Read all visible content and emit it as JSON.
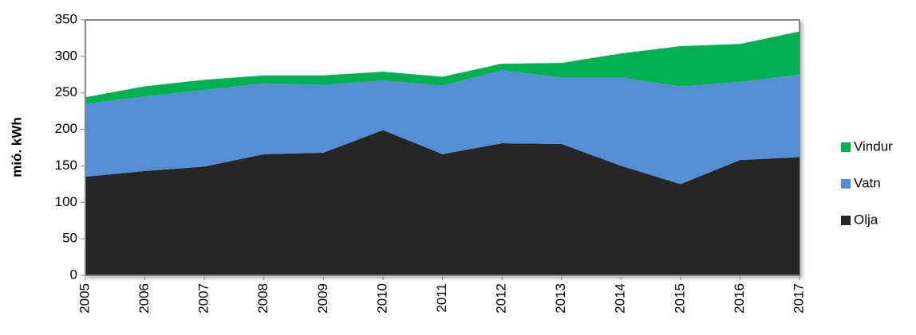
{
  "chart_data": {
    "type": "area",
    "stacked": true,
    "ylabel": "mió. kWh",
    "categories": [
      "2005",
      "2006",
      "2007",
      "2008",
      "2009",
      "2010",
      "2011",
      "2012",
      "2013",
      "2014",
      "2015",
      "2016",
      "2017"
    ],
    "series": [
      {
        "name": "Olja",
        "color": "#262626",
        "values": [
          135,
          143,
          149,
          166,
          168,
          199,
          166,
          181,
          180,
          150,
          125,
          158,
          162
        ]
      },
      {
        "name": "Vatn",
        "color": "#558ed5",
        "values": [
          100,
          102,
          105,
          97,
          93,
          68,
          94,
          100,
          91,
          121,
          134,
          107,
          113
        ]
      },
      {
        "name": "Vindur",
        "color": "#00b050",
        "values": [
          9,
          14,
          14,
          11,
          13,
          12,
          12,
          9,
          20,
          33,
          55,
          52,
          59
        ]
      }
    ],
    "ylim": [
      0,
      350
    ],
    "yticks": [
      0,
      50,
      100,
      150,
      200,
      250,
      300,
      350
    ],
    "legend": "right"
  }
}
